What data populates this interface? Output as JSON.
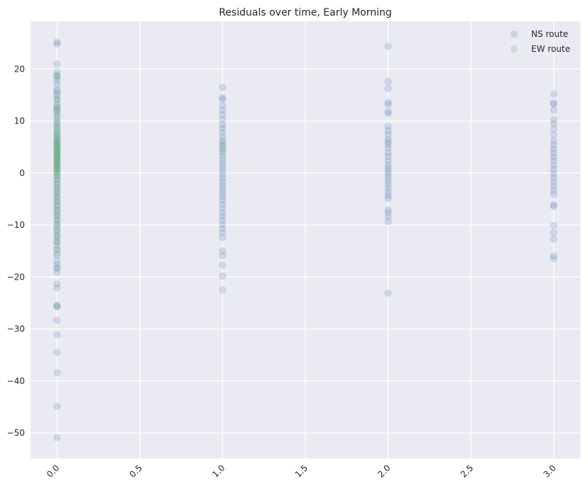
{
  "chart_data": {
    "type": "scatter",
    "title": "Residuals over time, Early Morning",
    "xlabel": "",
    "ylabel": "",
    "xlim": [
      -0.16,
      3.16
    ],
    "ylim": [
      -54.9,
      29.2
    ],
    "x_ticks": [
      0.0,
      0.5,
      1.0,
      1.5,
      2.0,
      2.5,
      3.0
    ],
    "x_tick_labels": [
      "0.0",
      "0.5",
      "1.0",
      "1.5",
      "2.0",
      "2.5",
      "3.0"
    ],
    "y_ticks": [
      -50,
      -40,
      -30,
      -20,
      -10,
      0,
      10,
      20
    ],
    "y_tick_labels": [
      "−50",
      "−40",
      "−30",
      "−20",
      "−10",
      "0",
      "10",
      "20"
    ],
    "grid": true,
    "legend_position": "top-right",
    "series": [
      {
        "name": "NS route",
        "color": "#4c72b0",
        "points": [
          [
            0,
            25.2
          ],
          [
            0,
            24.8
          ],
          [
            0,
            21.0
          ],
          [
            0,
            19.5
          ],
          [
            0,
            18.7
          ],
          [
            0,
            17.9
          ],
          [
            0,
            17.1
          ],
          [
            0,
            16.1
          ],
          [
            0,
            15.7
          ],
          [
            0,
            14.8
          ],
          [
            0,
            14.2
          ],
          [
            0,
            13.3
          ],
          [
            0,
            12.5
          ],
          [
            0,
            12.0
          ],
          [
            0,
            11.2
          ],
          [
            0,
            10.4
          ],
          [
            0,
            9.8
          ],
          [
            0,
            9.1
          ],
          [
            0,
            8.5
          ],
          [
            0,
            7.7
          ],
          [
            0,
            7.0
          ],
          [
            0,
            6.3
          ],
          [
            0,
            5.6
          ],
          [
            0,
            5.0
          ],
          [
            0,
            4.3
          ],
          [
            0,
            3.6
          ],
          [
            0,
            2.9
          ],
          [
            0,
            2.2
          ],
          [
            0,
            1.5
          ],
          [
            0,
            0.8
          ],
          [
            0,
            0.1
          ],
          [
            0,
            -0.6
          ],
          [
            0,
            -1.3
          ],
          [
            0,
            -2.0
          ],
          [
            0,
            -2.7
          ],
          [
            0,
            -3.4
          ],
          [
            0,
            -4.1
          ],
          [
            0,
            -4.8
          ],
          [
            0,
            -5.5
          ],
          [
            0,
            -6.2
          ],
          [
            0,
            -6.9
          ],
          [
            0,
            -7.6
          ],
          [
            0,
            -8.3
          ],
          [
            0,
            -9.0
          ],
          [
            0,
            -9.7
          ],
          [
            0,
            -10.4
          ],
          [
            0,
            -11.1
          ],
          [
            0,
            -11.8
          ],
          [
            0,
            -12.5
          ],
          [
            0,
            -13.2
          ],
          [
            0,
            -13.9
          ],
          [
            0,
            -14.8
          ],
          [
            0,
            -15.8
          ],
          [
            0,
            -16.9
          ],
          [
            0,
            -17.6
          ],
          [
            0,
            -18.3
          ],
          [
            0,
            -19.1
          ],
          [
            0,
            -21.3
          ],
          [
            0,
            -22.1
          ],
          [
            0,
            -25.4
          ],
          [
            0,
            -25.7
          ],
          [
            0,
            -28.3
          ],
          [
            0,
            -31.1
          ],
          [
            0,
            -34.5
          ],
          [
            0,
            -38.4
          ],
          [
            0,
            -44.9
          ],
          [
            0,
            -50.9
          ],
          [
            1,
            16.5
          ],
          [
            1,
            14.5
          ],
          [
            1,
            14.2
          ],
          [
            1,
            13.0
          ],
          [
            1,
            12.1
          ],
          [
            1,
            11.2
          ],
          [
            1,
            10.3
          ],
          [
            1,
            9.3
          ],
          [
            1,
            8.6
          ],
          [
            1,
            7.8
          ],
          [
            1,
            7.0
          ],
          [
            1,
            6.2
          ],
          [
            1,
            5.4
          ],
          [
            1,
            4.7
          ],
          [
            1,
            3.9
          ],
          [
            1,
            3.2
          ],
          [
            1,
            2.5
          ],
          [
            1,
            1.8
          ],
          [
            1,
            1.1
          ],
          [
            1,
            0.4
          ],
          [
            1,
            -0.3
          ],
          [
            1,
            -1.0
          ],
          [
            1,
            -1.7
          ],
          [
            1,
            -2.4
          ],
          [
            1,
            -3.1
          ],
          [
            1,
            -3.8
          ],
          [
            1,
            -4.5
          ],
          [
            1,
            -5.2
          ],
          [
            1,
            -6.0
          ],
          [
            1,
            -6.8
          ],
          [
            1,
            -7.6
          ],
          [
            1,
            -8.3
          ],
          [
            1,
            -9.1
          ],
          [
            1,
            -9.9
          ],
          [
            1,
            -10.7
          ],
          [
            1,
            -11.5
          ],
          [
            1,
            -12.4
          ],
          [
            1,
            -15.0
          ],
          [
            1,
            -15.9
          ],
          [
            1,
            -17.7
          ],
          [
            1,
            -19.8
          ],
          [
            1,
            -22.5
          ],
          [
            2,
            24.4
          ],
          [
            2,
            17.6
          ],
          [
            2,
            16.3
          ],
          [
            2,
            13.6
          ],
          [
            2,
            13.2
          ],
          [
            2,
            11.8
          ],
          [
            2,
            11.5
          ],
          [
            2,
            9.0
          ],
          [
            2,
            8.2
          ],
          [
            2,
            7.4
          ],
          [
            2,
            6.5
          ],
          [
            2,
            6.0
          ],
          [
            2,
            5.5
          ],
          [
            2,
            4.8
          ],
          [
            2,
            3.9
          ],
          [
            2,
            3.2
          ],
          [
            2,
            2.4
          ],
          [
            2,
            1.6
          ],
          [
            2,
            1.0
          ],
          [
            2,
            0.4
          ],
          [
            2,
            -0.2
          ],
          [
            2,
            -0.8
          ],
          [
            2,
            -1.5
          ],
          [
            2,
            -2.2
          ],
          [
            2,
            -2.9
          ],
          [
            2,
            -3.6
          ],
          [
            2,
            -4.3
          ],
          [
            2,
            -4.9
          ],
          [
            2,
            -7.1
          ],
          [
            2,
            -7.6
          ],
          [
            2,
            -8.4
          ],
          [
            2,
            -9.3
          ],
          [
            2,
            -23.1
          ],
          [
            3,
            15.2
          ],
          [
            3,
            13.5
          ],
          [
            3,
            13.3
          ],
          [
            3,
            12.1
          ],
          [
            3,
            10.3
          ],
          [
            3,
            9.5
          ],
          [
            3,
            8.5
          ],
          [
            3,
            7.4
          ],
          [
            3,
            6.2
          ],
          [
            3,
            5.4
          ],
          [
            3,
            4.6
          ],
          [
            3,
            3.9
          ],
          [
            3,
            3.1
          ],
          [
            3,
            2.4
          ],
          [
            3,
            1.5
          ],
          [
            3,
            0.7
          ],
          [
            3,
            -0.1
          ],
          [
            3,
            -0.9
          ],
          [
            3,
            -1.7
          ],
          [
            3,
            -2.5
          ],
          [
            3,
            -3.3
          ],
          [
            3,
            -4.1
          ],
          [
            3,
            -6.1
          ],
          [
            3,
            -6.4
          ],
          [
            3,
            -10.1
          ],
          [
            3,
            -11.5
          ],
          [
            3,
            -12.7
          ],
          [
            3,
            -15.9
          ],
          [
            3,
            -16.5
          ]
        ]
      },
      {
        "name": "EW route",
        "color": "#55a868",
        "points": [
          [
            0,
            18.8
          ],
          [
            0,
            18.4
          ],
          [
            0,
            15.3
          ],
          [
            0,
            14.1
          ],
          [
            0,
            12.9
          ],
          [
            0,
            12.4
          ],
          [
            0,
            11.8
          ],
          [
            0,
            10.9
          ],
          [
            0,
            9.6
          ],
          [
            0,
            8.7
          ],
          [
            0,
            8.0
          ],
          [
            0,
            7.5
          ],
          [
            0,
            7.0
          ],
          [
            0,
            6.6
          ],
          [
            0,
            6.2
          ],
          [
            0,
            5.9
          ],
          [
            0,
            5.6
          ],
          [
            0,
            5.3
          ],
          [
            0,
            5.0
          ],
          [
            0,
            4.7
          ],
          [
            0,
            4.4
          ],
          [
            0,
            4.1
          ],
          [
            0,
            3.8
          ],
          [
            0,
            3.5
          ],
          [
            0,
            3.2
          ],
          [
            0,
            2.9
          ],
          [
            0,
            2.6
          ],
          [
            0,
            2.3
          ],
          [
            0,
            2.0
          ],
          [
            0,
            1.7
          ],
          [
            0,
            1.4
          ],
          [
            0,
            1.1
          ],
          [
            0,
            0.8
          ],
          [
            0,
            0.4
          ],
          [
            0,
            0.0
          ],
          [
            0,
            -0.5
          ],
          [
            0,
            -1.2
          ],
          [
            0,
            -2.0
          ],
          [
            0,
            -2.8
          ],
          [
            0,
            -3.7
          ],
          [
            0,
            -4.5
          ],
          [
            0,
            -5.4
          ],
          [
            0,
            -6.3
          ],
          [
            0,
            -7.2
          ],
          [
            0,
            -8.1
          ],
          [
            0,
            -9.0
          ],
          [
            0,
            -10.0
          ],
          [
            0,
            -11.1
          ],
          [
            0,
            -12.2
          ],
          [
            0,
            -13.3
          ],
          [
            0,
            -14.6
          ],
          [
            0,
            -15.5
          ],
          [
            0,
            -18.2
          ],
          [
            0,
            -25.6
          ],
          [
            1,
            6.0
          ],
          [
            1,
            5.2
          ],
          [
            1,
            4.3
          ]
        ]
      }
    ]
  }
}
